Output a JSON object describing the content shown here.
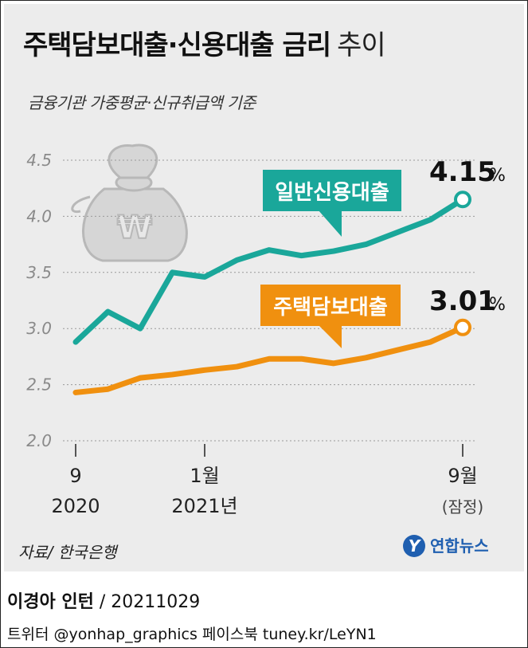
{
  "header": {
    "title_bold": "주택담보대출·신용대출 금리",
    "title_light": "추이",
    "subtitle": "금융기관 가중평균·신규취급액 기준"
  },
  "source": "자료/ 한국은행",
  "logo": {
    "mark": "Y",
    "text": "연합뉴스"
  },
  "credit": {
    "author": "이경아 인턴",
    "date": "/ 20211029"
  },
  "social": "트위터 @yonhap_graphics  페이스북 tuney.kr/LeYN1",
  "colors": {
    "credit_loan": "#1aa79a",
    "mortgage": "#f0900f",
    "grid": "#9a9a9a",
    "axis_text": "#8a8a8a"
  },
  "icon": "money-bag-won-icon",
  "chart_data": {
    "type": "line",
    "title": "주택담보대출·신용대출 금리 추이",
    "xlabel": "",
    "ylabel": "",
    "ylim": [
      2.0,
      4.5
    ],
    "yticks": [
      "4.5",
      "4.0",
      "3.5",
      "3.0",
      "2.5",
      "2.0"
    ],
    "x": [
      "2020-09",
      "2020-10",
      "2020-11",
      "2020-12",
      "2021-01",
      "2021-02",
      "2021-03",
      "2021-04",
      "2021-05",
      "2021-06",
      "2021-07",
      "2021-08",
      "2021-09"
    ],
    "xtick_labels": [
      {
        "x": "2020-09",
        "line1": "9",
        "line2": "2020"
      },
      {
        "x": "2021-01",
        "line1": "1월",
        "line2": "2021년"
      },
      {
        "x": "2021-09",
        "line1": "9월",
        "line2": "(잠정)"
      }
    ],
    "grid": true,
    "series": [
      {
        "name": "일반신용대출",
        "values": [
          2.88,
          3.15,
          3.0,
          3.5,
          3.46,
          3.61,
          3.7,
          3.65,
          3.69,
          3.75,
          3.86,
          3.97,
          4.15
        ],
        "end_label": "4.15",
        "unit": "%"
      },
      {
        "name": "주택담보대출",
        "values": [
          2.43,
          2.46,
          2.56,
          2.59,
          2.63,
          2.66,
          2.73,
          2.73,
          2.69,
          2.74,
          2.81,
          2.88,
          3.01
        ],
        "end_label": "3.01",
        "unit": "%"
      }
    ]
  }
}
